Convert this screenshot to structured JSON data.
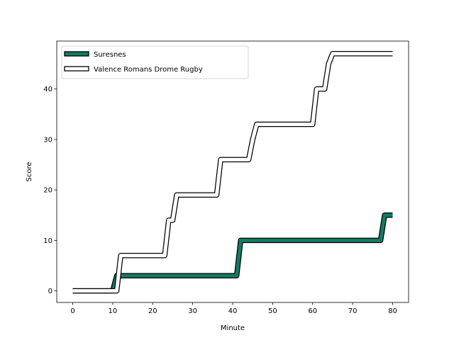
{
  "chart_data": {
    "type": "line",
    "title": "",
    "xlabel": "Minute",
    "ylabel": "Score",
    "xlim": [
      -4,
      84
    ],
    "ylim": [
      -2.3,
      49.5
    ],
    "xticks": [
      0,
      10,
      20,
      30,
      40,
      50,
      60,
      70,
      80
    ],
    "yticks": [
      0,
      10,
      20,
      30,
      40
    ],
    "grid": false,
    "legend_position": "top-left",
    "series": [
      {
        "name": "Suresnes",
        "color": "#127a62",
        "outline": "#000000",
        "points": [
          [
            0,
            0
          ],
          [
            10,
            0
          ],
          [
            11,
            3
          ],
          [
            41,
            3
          ],
          [
            42,
            10
          ],
          [
            77,
            10
          ],
          [
            78,
            15
          ],
          [
            80,
            15
          ]
        ]
      },
      {
        "name": "Valence Romans Drome Rugby",
        "color": "#ffffff",
        "outline": "#000000",
        "points": [
          [
            0,
            0
          ],
          [
            11,
            0
          ],
          [
            12,
            7
          ],
          [
            23,
            7
          ],
          [
            24,
            14
          ],
          [
            25,
            14
          ],
          [
            26,
            19
          ],
          [
            36,
            19
          ],
          [
            37,
            26
          ],
          [
            44,
            26
          ],
          [
            45,
            30
          ],
          [
            46,
            33
          ],
          [
            60,
            33
          ],
          [
            61,
            40
          ],
          [
            63,
            40
          ],
          [
            64,
            45
          ],
          [
            65,
            47
          ],
          [
            80,
            47
          ]
        ]
      }
    ]
  }
}
